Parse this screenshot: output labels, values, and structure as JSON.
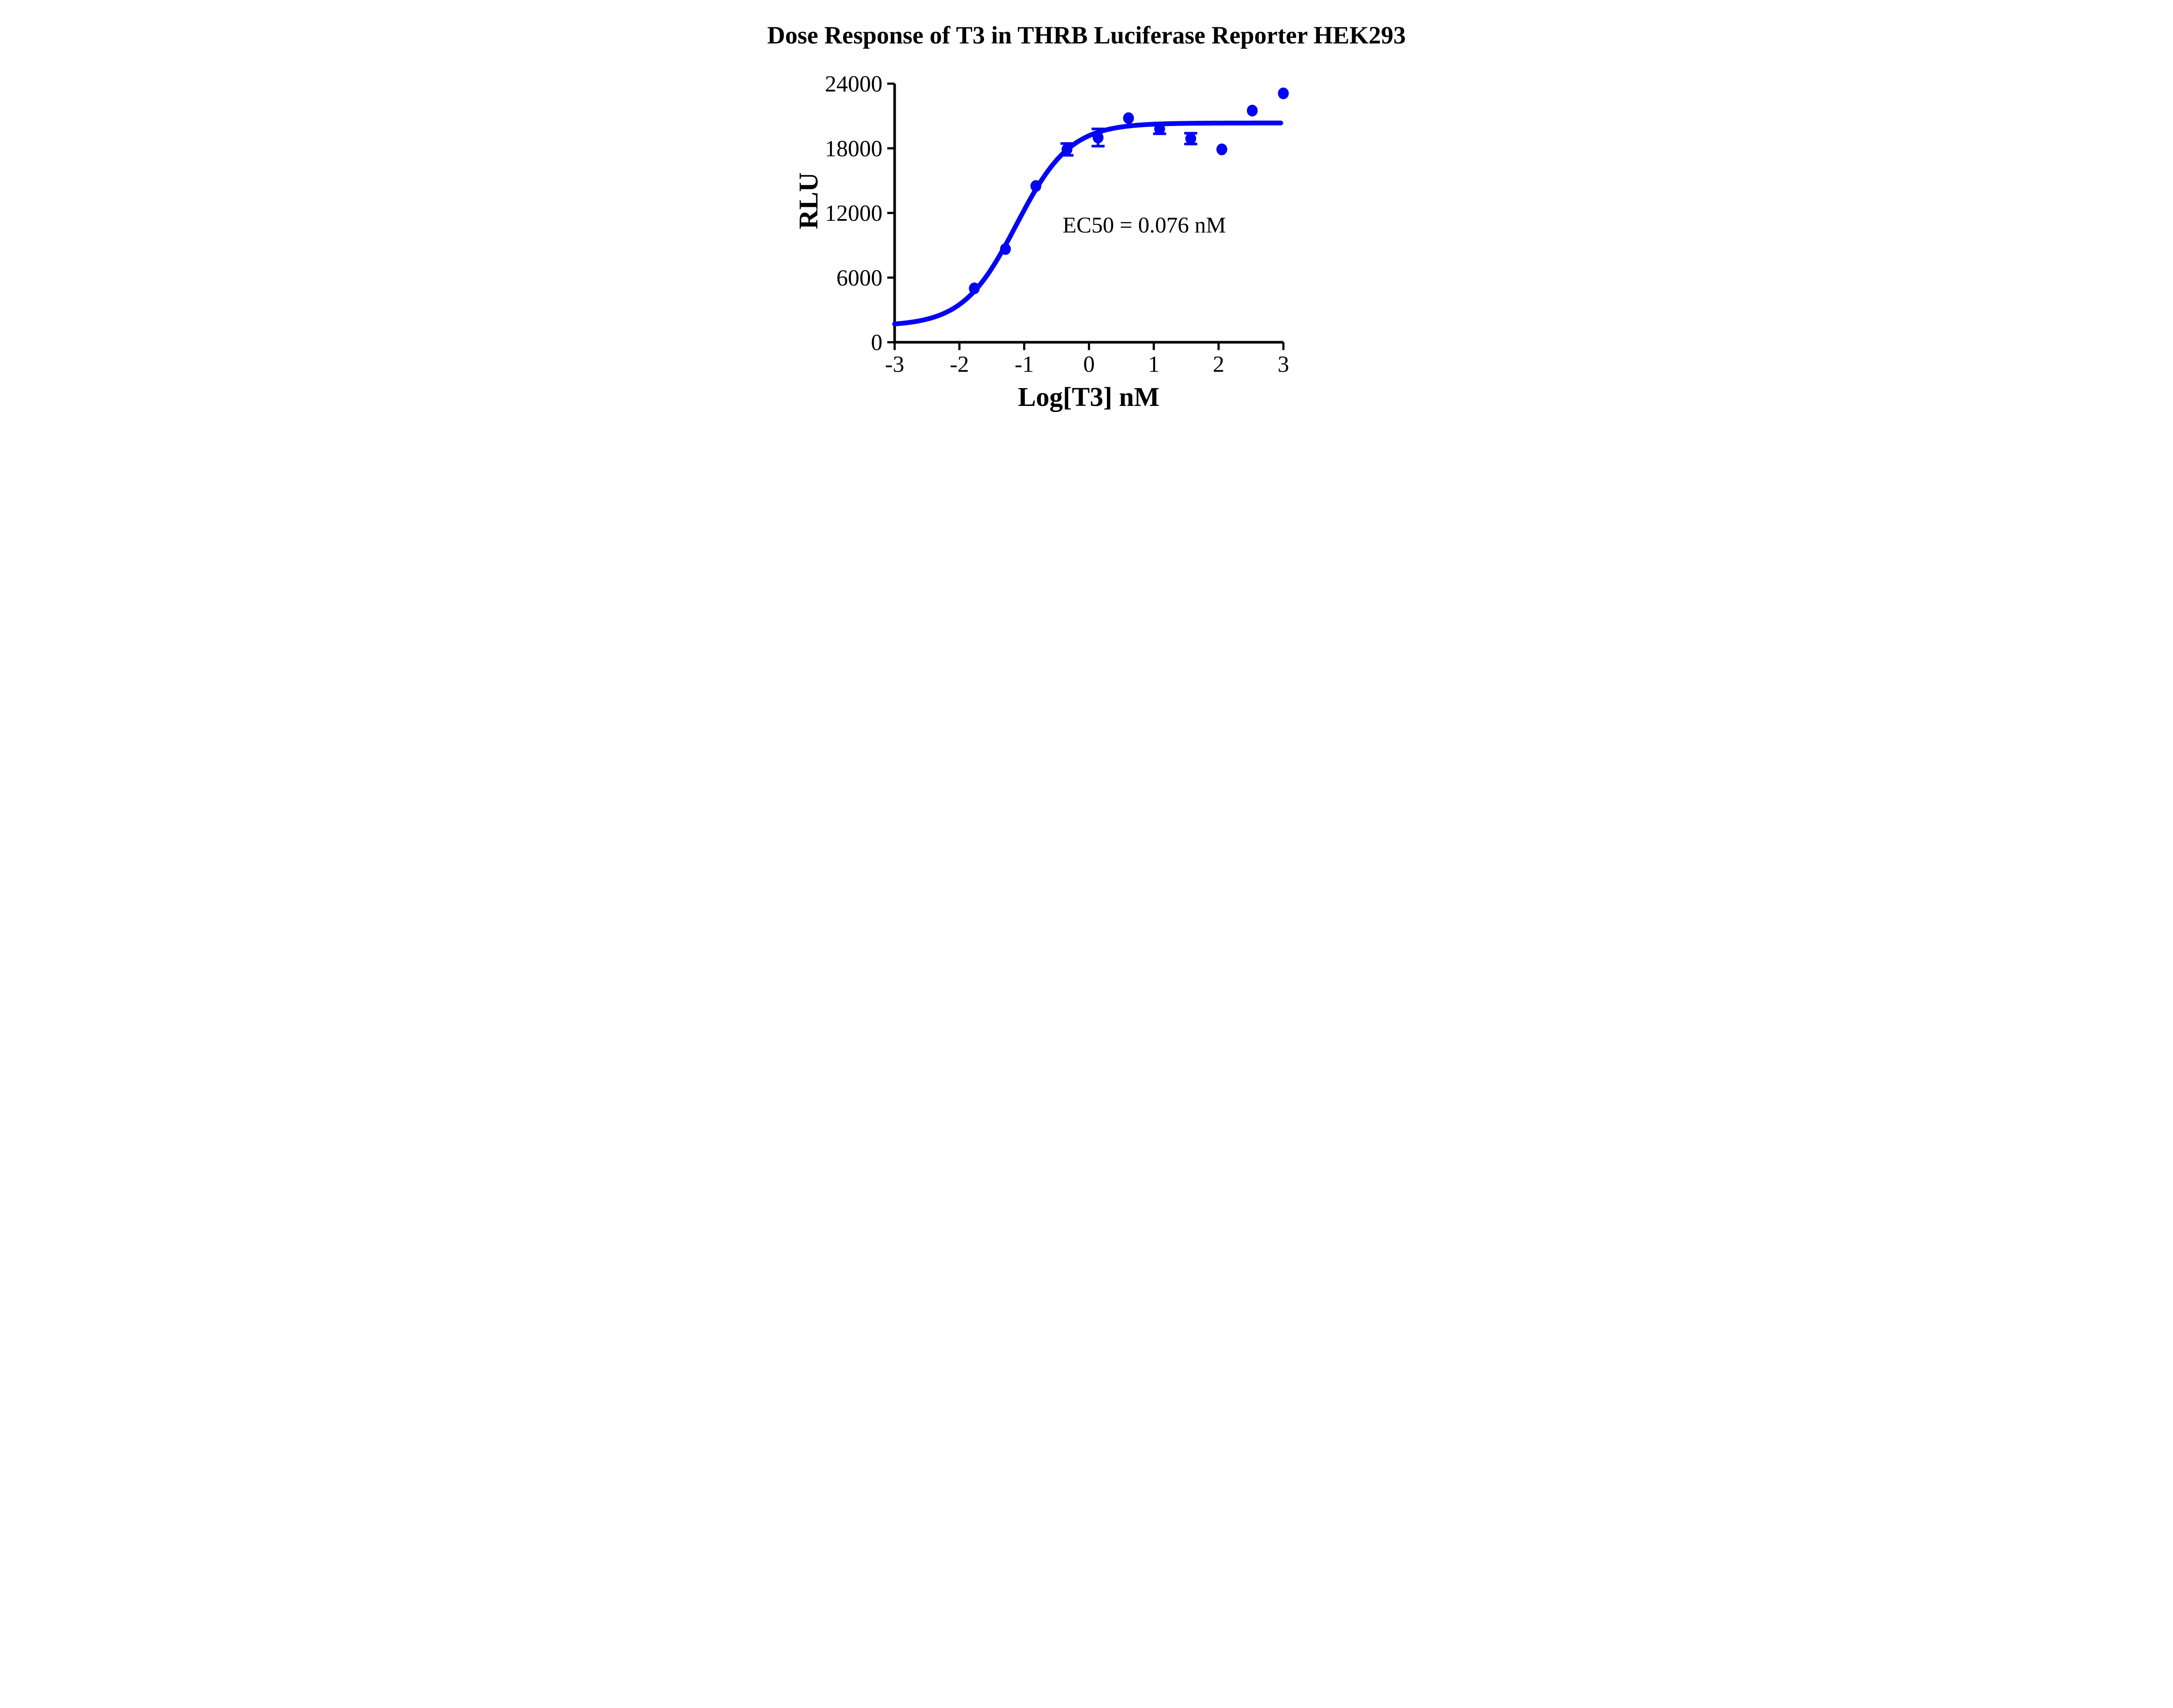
{
  "chart_data": {
    "type": "scatter",
    "title": "Dose Response of T3 in THRB Luciferase Reporter HEK293",
    "xlabel": "Log[T3] nM",
    "ylabel": "RLU",
    "annotation": "EC50 = 0.076 nM",
    "xlim": [
      -3,
      3
    ],
    "ylim": [
      0,
      24000
    ],
    "x_ticks": [
      -3,
      -2,
      -1,
      0,
      1,
      2,
      3
    ],
    "y_ticks": [
      0,
      6000,
      12000,
      18000,
      24000
    ],
    "grid": false,
    "legend": null,
    "colors": {
      "series": "#0404F5",
      "axis": "#000000",
      "text": "#000000",
      "background": "#FFFFFF"
    },
    "series": [
      {
        "name": "T3",
        "marker": "circle",
        "color": "#0404F5",
        "points": [
          {
            "x": -1.77,
            "y": 5000,
            "err": null
          },
          {
            "x": -1.29,
            "y": 8650,
            "err": null
          },
          {
            "x": -0.82,
            "y": 14500,
            "err": null
          },
          {
            "x": -0.34,
            "y": 17900,
            "err": 550
          },
          {
            "x": 0.14,
            "y": 19000,
            "err": 800
          },
          {
            "x": 0.61,
            "y": 20800,
            "err": null
          },
          {
            "x": 1.09,
            "y": 19800,
            "err": 450
          },
          {
            "x": 1.57,
            "y": 18900,
            "err": 500
          },
          {
            "x": 2.05,
            "y": 17900,
            "err": null
          },
          {
            "x": 2.52,
            "y": 21500,
            "err": null
          },
          {
            "x": 3.0,
            "y": 23100,
            "err": null
          }
        ]
      }
    ],
    "fit_curve": {
      "model": "four_parameter_logistic",
      "bottom": 1500,
      "top": 20350,
      "log_ec50": -1.119,
      "hill_slope": 1.05,
      "ec50_nM": 0.076,
      "x_range": [
        -3,
        2.96
      ],
      "color": "#0404F5"
    }
  }
}
